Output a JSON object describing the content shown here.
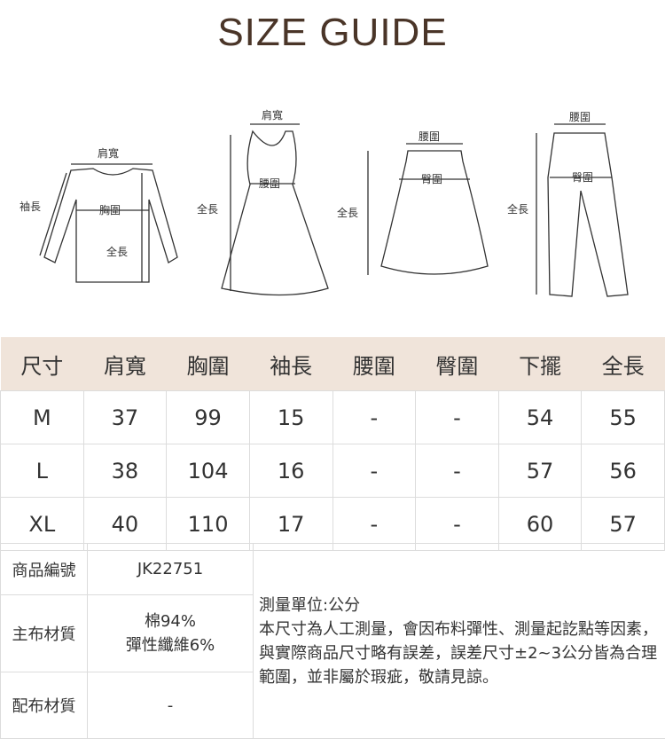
{
  "title": "SIZE GUIDE",
  "diagrams": {
    "top": {
      "shoulder": "肩寬",
      "sleeve": "袖長",
      "chest": "胸圍",
      "length": "全長"
    },
    "dress": {
      "shoulder": "肩寬",
      "length": "全長",
      "waist": "腰圍"
    },
    "skirt": {
      "waist": "腰圍",
      "hip": "臀圍",
      "length": "全長"
    },
    "pants": {
      "waist": "腰圍",
      "hip": "臀圍",
      "length": "全長"
    }
  },
  "size_table": {
    "headers": [
      "尺寸",
      "肩寬",
      "胸圍",
      "袖長",
      "腰圍",
      "臀圍",
      "下擺",
      "全長"
    ],
    "rows": [
      [
        "M",
        "37",
        "99",
        "15",
        "-",
        "-",
        "54",
        "55"
      ],
      [
        "L",
        "38",
        "104",
        "16",
        "-",
        "-",
        "57",
        "56"
      ],
      [
        "XL",
        "40",
        "110",
        "17",
        "-",
        "-",
        "60",
        "57"
      ]
    ]
  },
  "info": {
    "product_code_label": "商品編號",
    "product_code": "JK22751",
    "main_material_label": "主布材質",
    "main_material_1": "棉94%",
    "main_material_2": "彈性纖維6%",
    "lining_label": "配布材質",
    "lining": "-",
    "note_unit": "測量單位:公分",
    "note_body": "本尺寸為人工測量，會因布料彈性、測量起訖點等因素，與實際商品尺寸略有誤差，誤差尺寸±2~3公分皆為合理範圍，並非屬於瑕疵，敬請見諒。"
  },
  "colors": {
    "header_bg": "#f0e4da",
    "title": "#4a3528"
  }
}
